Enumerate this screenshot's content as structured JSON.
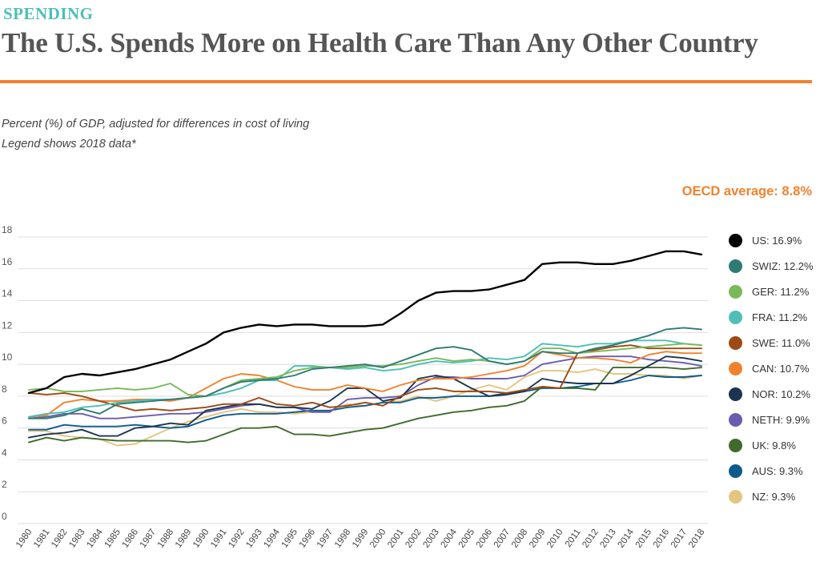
{
  "header": {
    "kicker": "SPENDING",
    "title": "The U.S. Spends More on Health Care Than Any Other Country",
    "subtitle_line1": "Percent (%) of GDP, adjusted for differences in cost of living",
    "subtitle_line2": "Legend shows 2018 data*",
    "oecd_average": "OECD average: 8.8%"
  },
  "colors": {
    "kicker": "#4dbfb6",
    "rule": "#f0822d",
    "oecd": "#f0822d",
    "grid": "#dddddd"
  },
  "chart_data": {
    "type": "line",
    "title": "The U.S. Spends More on Health Care Than Any Other Country",
    "ylabel": "Percent (%) of GDP",
    "ylim": [
      0,
      18
    ],
    "yticks": [
      "0",
      "2",
      "4",
      "6",
      "8",
      "10",
      "12",
      "14",
      "16",
      "18"
    ],
    "grid": true,
    "legend_position": "right",
    "x": [
      "1980",
      "1981",
      "1982",
      "1983",
      "1984",
      "1985",
      "1986",
      "1987",
      "1988",
      "1989",
      "1990",
      "1991",
      "1992",
      "1993",
      "1994",
      "1995",
      "1996",
      "1997",
      "1998",
      "1999",
      "2000",
      "2001",
      "2002",
      "2003",
      "2004",
      "2005",
      "2006",
      "2007",
      "2008",
      "2009",
      "2010",
      "2011",
      "2012",
      "2013",
      "2014",
      "2015",
      "2016",
      "2017",
      "2018"
    ],
    "series": [
      {
        "name": "US",
        "label": "US: 16.9%",
        "color": "#000000",
        "values": [
          8.2,
          8.5,
          9.2,
          9.4,
          9.3,
          9.5,
          9.7,
          10.0,
          10.3,
          10.8,
          11.3,
          12.0,
          12.3,
          12.5,
          12.4,
          12.5,
          12.5,
          12.4,
          12.4,
          12.4,
          12.5,
          13.2,
          14.0,
          14.5,
          14.6,
          14.6,
          14.7,
          15.0,
          15.3,
          16.3,
          16.4,
          16.4,
          16.3,
          16.3,
          16.5,
          16.8,
          17.1,
          17.1,
          16.9
        ]
      },
      {
        "name": "SWIZ",
        "label": "SWIZ: 12.2%",
        "color": "#2e7b73",
        "values": [
          6.6,
          6.6,
          6.8,
          7.2,
          6.9,
          7.5,
          7.6,
          7.7,
          7.8,
          7.9,
          8.0,
          8.5,
          8.9,
          9.0,
          9.1,
          9.3,
          9.7,
          9.8,
          9.9,
          10.0,
          9.8,
          10.2,
          10.6,
          11.0,
          11.1,
          10.9,
          10.2,
          10.0,
          10.2,
          10.8,
          10.7,
          10.7,
          11.0,
          11.2,
          11.5,
          11.8,
          12.2,
          12.3,
          12.2
        ]
      },
      {
        "name": "GER",
        "label": "GER: 11.2%",
        "color": "#79b959",
        "values": [
          8.4,
          8.5,
          8.3,
          8.3,
          8.4,
          8.5,
          8.4,
          8.5,
          8.8,
          8.1,
          8.0,
          8.5,
          9.0,
          9.1,
          9.2,
          9.6,
          9.8,
          9.8,
          9.8,
          9.9,
          9.9,
          10.0,
          10.2,
          10.4,
          10.2,
          10.3,
          10.2,
          10.0,
          10.2,
          11.0,
          11.0,
          10.7,
          10.8,
          10.9,
          11.0,
          11.1,
          11.2,
          11.3,
          11.2
        ]
      },
      {
        "name": "FRA",
        "label": "FRA: 11.2%",
        "color": "#4dbfb6",
        "values": [
          6.7,
          6.9,
          7.0,
          7.3,
          7.4,
          7.6,
          7.7,
          7.8,
          7.8,
          7.9,
          8.0,
          8.2,
          8.5,
          9.0,
          9.0,
          9.9,
          9.9,
          9.8,
          9.7,
          9.8,
          9.6,
          9.7,
          10.0,
          10.2,
          10.1,
          10.2,
          10.4,
          10.3,
          10.5,
          11.3,
          11.2,
          11.1,
          11.3,
          11.3,
          11.5,
          11.5,
          11.5,
          11.3,
          11.2
        ]
      },
      {
        "name": "SWE",
        "label": "SWE: 11.0%",
        "color": "#9c4a14",
        "values": [
          8.2,
          8.1,
          8.2,
          8.0,
          7.7,
          7.4,
          7.1,
          7.2,
          7.1,
          7.2,
          7.3,
          7.5,
          7.5,
          7.9,
          7.5,
          7.4,
          7.6,
          7.3,
          7.4,
          7.6,
          7.4,
          8.0,
          8.4,
          8.5,
          8.3,
          8.3,
          8.3,
          8.2,
          8.4,
          8.6,
          8.5,
          10.7,
          10.9,
          11.1,
          11.2,
          11.0,
          11.0,
          11.0,
          11.0
        ]
      },
      {
        "name": "CAN",
        "label": "CAN: 10.7%",
        "color": "#f0822d",
        "values": [
          6.7,
          6.8,
          7.6,
          7.8,
          7.7,
          7.7,
          7.8,
          7.8,
          7.7,
          7.9,
          8.5,
          9.1,
          9.4,
          9.3,
          9.0,
          8.6,
          8.4,
          8.4,
          8.7,
          8.5,
          8.3,
          8.7,
          9.0,
          9.1,
          9.1,
          9.2,
          9.4,
          9.6,
          9.9,
          10.8,
          10.6,
          10.4,
          10.4,
          10.3,
          10.1,
          10.6,
          10.8,
          10.7,
          10.7
        ]
      },
      {
        "name": "NOR",
        "label": "NOR: 10.2%",
        "color": "#1a3550",
        "values": [
          5.4,
          5.6,
          5.7,
          5.9,
          5.5,
          5.5,
          6.0,
          6.1,
          6.3,
          6.2,
          7.1,
          7.3,
          7.5,
          7.5,
          7.3,
          7.3,
          7.2,
          7.7,
          8.5,
          8.5,
          7.7,
          7.9,
          9.1,
          9.3,
          9.1,
          8.5,
          8.0,
          8.1,
          8.3,
          9.1,
          8.9,
          8.8,
          8.8,
          8.8,
          9.3,
          9.9,
          10.5,
          10.4,
          10.2
        ]
      },
      {
        "name": "NETH",
        "label": "NETH: 9.9%",
        "color": "#6a5dae",
        "values": [
          6.6,
          6.7,
          6.9,
          6.9,
          6.6,
          6.6,
          6.7,
          6.8,
          6.9,
          6.9,
          7.0,
          7.2,
          7.4,
          7.5,
          7.3,
          7.3,
          7.0,
          7.0,
          7.8,
          7.9,
          7.9,
          8.0,
          8.7,
          9.2,
          9.2,
          9.1,
          9.1,
          9.1,
          9.3,
          10.0,
          10.2,
          10.4,
          10.5,
          10.5,
          10.5,
          10.3,
          10.2,
          10.1,
          9.9
        ]
      },
      {
        "name": "UK",
        "label": "UK: 9.8%",
        "color": "#3f6b2c",
        "values": [
          5.1,
          5.4,
          5.2,
          5.4,
          5.3,
          5.2,
          5.2,
          5.2,
          5.2,
          5.1,
          5.2,
          5.6,
          6.0,
          6.0,
          6.1,
          5.6,
          5.6,
          5.5,
          5.7,
          5.9,
          6.0,
          6.3,
          6.6,
          6.8,
          7.0,
          7.1,
          7.3,
          7.4,
          7.7,
          8.6,
          8.5,
          8.5,
          8.4,
          9.8,
          9.8,
          9.8,
          9.8,
          9.7,
          9.8
        ]
      },
      {
        "name": "AUS",
        "label": "AUS: 9.3%",
        "color": "#0d5b8e",
        "values": [
          5.9,
          5.9,
          6.2,
          6.1,
          6.1,
          6.1,
          6.2,
          6.1,
          6.0,
          6.1,
          6.5,
          6.8,
          6.9,
          6.9,
          6.9,
          7.0,
          7.1,
          7.1,
          7.3,
          7.4,
          7.6,
          7.6,
          7.9,
          7.9,
          8.0,
          8.0,
          8.0,
          8.2,
          8.3,
          8.5,
          8.5,
          8.6,
          8.8,
          8.8,
          9.0,
          9.3,
          9.2,
          9.2,
          9.3
        ]
      },
      {
        "name": "NZ",
        "label": "NZ: 9.3%",
        "color": "#e5c47f",
        "values": [
          5.8,
          5.8,
          5.5,
          5.4,
          5.3,
          4.9,
          5.0,
          5.5,
          6.0,
          6.4,
          6.7,
          7.0,
          7.2,
          7.0,
          7.0,
          6.9,
          7.0,
          7.1,
          7.5,
          7.4,
          7.6,
          7.7,
          8.0,
          7.7,
          8.0,
          8.4,
          8.7,
          8.4,
          9.2,
          9.6,
          9.6,
          9.5,
          9.7,
          9.4,
          9.4,
          9.3,
          9.3,
          9.1,
          9.3
        ]
      }
    ]
  }
}
